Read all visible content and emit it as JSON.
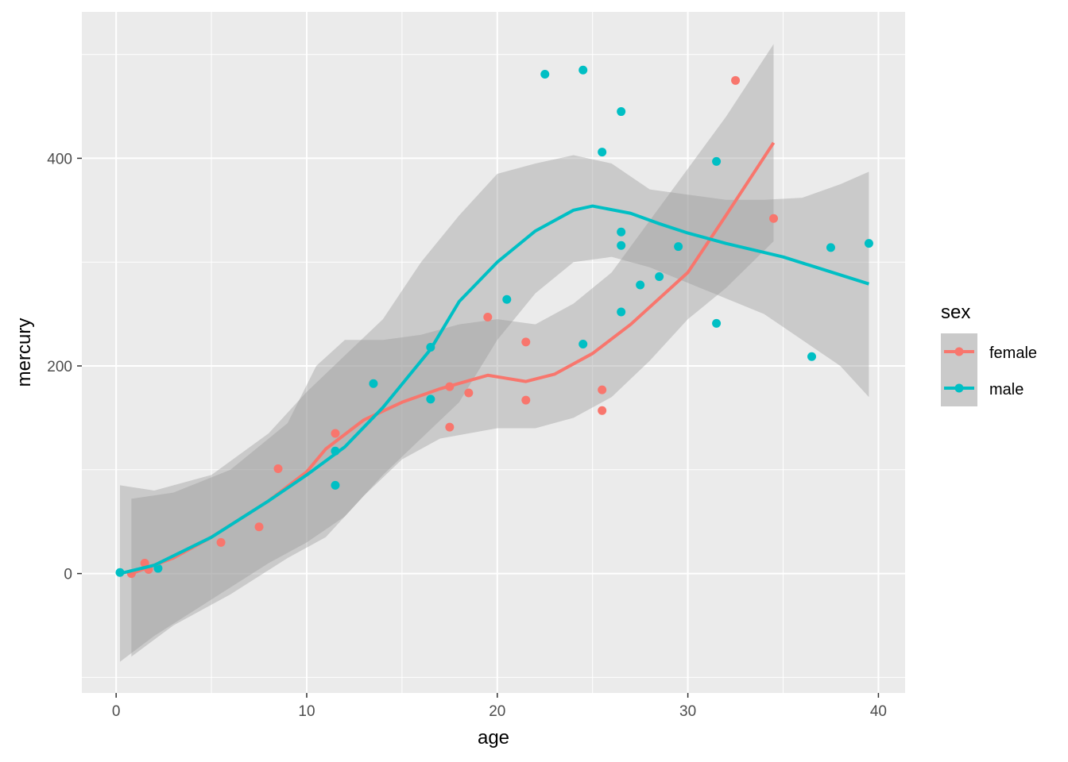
{
  "chart_data": {
    "type": "scatter",
    "title": "",
    "xlabel": "age",
    "ylabel": "mercury",
    "xlim": [
      -1.8,
      41.4
    ],
    "ylim": [
      -115,
      541
    ],
    "xticks": [
      0,
      10,
      20,
      30,
      40
    ],
    "xtick_labels": [
      "0",
      "10",
      "20",
      "30",
      "40"
    ],
    "yticks": [
      0,
      200,
      400
    ],
    "ytick_labels": [
      "0",
      "200",
      "400"
    ],
    "grid": true,
    "legend": {
      "title": "sex",
      "placement": "right",
      "entries": [
        "female",
        "male"
      ]
    },
    "colors": {
      "female": "#F8766D",
      "male": "#00BFC4",
      "panel": "#EBEBEB",
      "ribbon": "#999999"
    },
    "series": [
      {
        "name": "female",
        "points": [
          [
            0.8,
            0
          ],
          [
            1.5,
            10
          ],
          [
            1.7,
            4
          ],
          [
            5.5,
            30
          ],
          [
            7.5,
            45
          ],
          [
            8.5,
            101
          ],
          [
            11.5,
            135
          ],
          [
            17.5,
            180
          ],
          [
            17.5,
            141
          ],
          [
            18.5,
            174
          ],
          [
            19.5,
            247
          ],
          [
            21.5,
            223
          ],
          [
            21.5,
            167
          ],
          [
            25.5,
            177
          ],
          [
            25.5,
            157
          ],
          [
            32.5,
            475
          ],
          [
            34.5,
            342
          ]
        ],
        "smooth": [
          [
            0.8,
            0
          ],
          [
            3,
            15
          ],
          [
            5,
            35
          ],
          [
            8,
            70
          ],
          [
            10,
            98
          ],
          [
            11,
            120
          ],
          [
            13,
            148
          ],
          [
            15,
            165
          ],
          [
            17,
            178
          ],
          [
            19.5,
            191
          ],
          [
            21.5,
            185
          ],
          [
            23,
            192
          ],
          [
            25,
            212
          ],
          [
            27,
            240
          ],
          [
            30,
            290
          ],
          [
            32,
            345
          ],
          [
            34.5,
            415
          ]
        ],
        "ribbon_upper": [
          [
            0.8,
            72
          ],
          [
            3,
            78
          ],
          [
            6,
            100
          ],
          [
            9,
            145
          ],
          [
            10.5,
            200
          ],
          [
            12,
            225
          ],
          [
            14,
            225
          ],
          [
            16,
            230
          ],
          [
            18,
            240
          ],
          [
            20,
            245
          ],
          [
            22,
            240
          ],
          [
            24,
            260
          ],
          [
            26,
            290
          ],
          [
            28,
            340
          ],
          [
            30,
            390
          ],
          [
            32,
            440
          ],
          [
            34.5,
            510
          ]
        ],
        "ribbon_lower": [
          [
            0.8,
            -80
          ],
          [
            3,
            -50
          ],
          [
            6,
            -20
          ],
          [
            9,
            15
          ],
          [
            11,
            35
          ],
          [
            13,
            75
          ],
          [
            15,
            110
          ],
          [
            17,
            130
          ],
          [
            20,
            140
          ],
          [
            22,
            140
          ],
          [
            24,
            150
          ],
          [
            26,
            170
          ],
          [
            28,
            205
          ],
          [
            30,
            245
          ],
          [
            32,
            275
          ],
          [
            34.5,
            320
          ]
        ]
      },
      {
        "name": "male",
        "points": [
          [
            0.2,
            1
          ],
          [
            2.2,
            5
          ],
          [
            11.5,
            118
          ],
          [
            11.5,
            85
          ],
          [
            13.5,
            183
          ],
          [
            16.5,
            218
          ],
          [
            16.5,
            168
          ],
          [
            20.5,
            264
          ],
          [
            22.5,
            481
          ],
          [
            24.5,
            485
          ],
          [
            24.5,
            221
          ],
          [
            25.5,
            406
          ],
          [
            26.5,
            445
          ],
          [
            26.5,
            329
          ],
          [
            26.5,
            316
          ],
          [
            26.5,
            252
          ],
          [
            27.5,
            278
          ],
          [
            28.5,
            286
          ],
          [
            29.5,
            315
          ],
          [
            31.5,
            397
          ],
          [
            31.5,
            241
          ],
          [
            36.5,
            209
          ],
          [
            37.5,
            314
          ],
          [
            39.5,
            318
          ]
        ],
        "smooth": [
          [
            0.2,
            0
          ],
          [
            2,
            8
          ],
          [
            5,
            35
          ],
          [
            8,
            70
          ],
          [
            10,
            95
          ],
          [
            12,
            122
          ],
          [
            14,
            160
          ],
          [
            16.5,
            216
          ],
          [
            18,
            262
          ],
          [
            20,
            300
          ],
          [
            22,
            330
          ],
          [
            24,
            350
          ],
          [
            25,
            354
          ],
          [
            27,
            347
          ],
          [
            28.5,
            337
          ],
          [
            30,
            328
          ],
          [
            32,
            318
          ],
          [
            35,
            305
          ],
          [
            39.5,
            279
          ]
        ],
        "ribbon_upper": [
          [
            0.2,
            85
          ],
          [
            2,
            80
          ],
          [
            5,
            95
          ],
          [
            8,
            135
          ],
          [
            10,
            175
          ],
          [
            12,
            210
          ],
          [
            14,
            245
          ],
          [
            16,
            300
          ],
          [
            18,
            345
          ],
          [
            20,
            385
          ],
          [
            22,
            395
          ],
          [
            24,
            403
          ],
          [
            26,
            395
          ],
          [
            28,
            370
          ],
          [
            30,
            365
          ],
          [
            32,
            360
          ],
          [
            34,
            360
          ],
          [
            36,
            362
          ],
          [
            38,
            375
          ],
          [
            39.5,
            387
          ]
        ],
        "ribbon_lower": [
          [
            0.2,
            -85
          ],
          [
            2,
            -60
          ],
          [
            5,
            -25
          ],
          [
            8,
            10
          ],
          [
            10,
            30
          ],
          [
            12,
            55
          ],
          [
            14,
            95
          ],
          [
            16,
            130
          ],
          [
            18,
            165
          ],
          [
            20,
            225
          ],
          [
            22,
            270
          ],
          [
            24,
            300
          ],
          [
            26,
            305
          ],
          [
            28,
            295
          ],
          [
            30,
            280
          ],
          [
            32,
            265
          ],
          [
            34,
            250
          ],
          [
            36,
            225
          ],
          [
            38,
            200
          ],
          [
            39.5,
            170
          ]
        ]
      }
    ]
  }
}
